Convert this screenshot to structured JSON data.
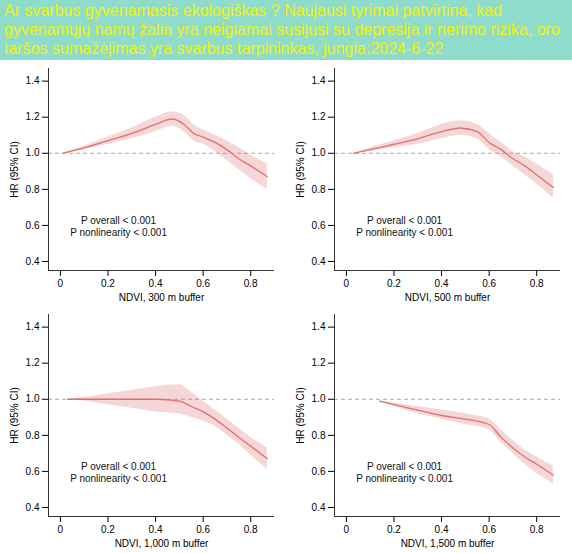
{
  "title": "Ar svarbus gyvenamasis ekologiškas ? Naujausi tyrimai patvirtina, kad gyvenamųjų namų žalia yra neigiamai susijusi su depresija ir nerimo rizika, oro taršos sumažėjimas yra svarbus tarpininkas, jungia:2024-6-22",
  "chart_data": [
    {
      "type": "line",
      "xlabel": "NDVI, 300 m buffer",
      "ylabel": "HR (95% CI)",
      "annotations": [
        "P overall < 0.001",
        "P nonlinearity < 0.001"
      ],
      "x": [
        0.01,
        0.1,
        0.2,
        0.3,
        0.4,
        0.47,
        0.52,
        0.56,
        0.6,
        0.65,
        0.7,
        0.75,
        0.8,
        0.87
      ],
      "values": [
        1.0,
        1.03,
        1.07,
        1.11,
        1.16,
        1.19,
        1.16,
        1.11,
        1.09,
        1.06,
        1.02,
        0.97,
        0.93,
        0.87
      ],
      "lower": [
        1.0,
        1.02,
        1.05,
        1.08,
        1.12,
        1.15,
        1.12,
        1.07,
        1.05,
        1.01,
        0.96,
        0.91,
        0.86,
        0.8
      ],
      "upper": [
        1.0,
        1.04,
        1.09,
        1.14,
        1.2,
        1.23,
        1.21,
        1.16,
        1.13,
        1.1,
        1.07,
        1.03,
        0.99,
        0.94
      ],
      "color": "#e07070",
      "reference_y": 1,
      "xlim": [
        -0.05,
        0.9
      ],
      "xticks": [
        0,
        0.2,
        0.4,
        0.6,
        0.8
      ],
      "ylim": [
        0.35,
        1.47
      ],
      "yticks": [
        0.4,
        0.6,
        0.8,
        {
          "value": 1,
          "label": "1.0"
        },
        1.2,
        1.4
      ]
    },
    {
      "type": "line",
      "xlabel": "NDVI, 500 m buffer",
      "ylabel": "HR (95% CI)",
      "annotations": [
        "P overall < 0.001",
        "P nonlinearity < 0.001"
      ],
      "x": [
        0.03,
        0.1,
        0.2,
        0.3,
        0.4,
        0.48,
        0.55,
        0.6,
        0.65,
        0.7,
        0.75,
        0.8,
        0.87
      ],
      "values": [
        1.0,
        1.02,
        1.05,
        1.08,
        1.12,
        1.14,
        1.12,
        1.06,
        1.02,
        0.97,
        0.93,
        0.88,
        0.81
      ],
      "lower": [
        1.0,
        1.01,
        1.03,
        1.05,
        1.08,
        1.1,
        1.08,
        1.02,
        0.98,
        0.93,
        0.88,
        0.83,
        0.75
      ],
      "upper": [
        1.0,
        1.03,
        1.07,
        1.11,
        1.16,
        1.18,
        1.16,
        1.11,
        1.06,
        1.01,
        0.98,
        0.94,
        0.88
      ],
      "color": "#e07070",
      "reference_y": 1,
      "xlim": [
        -0.05,
        0.9
      ],
      "xticks": [
        0,
        0.2,
        0.4,
        0.6,
        0.8
      ],
      "ylim": [
        0.35,
        1.47
      ],
      "yticks": [
        0.4,
        0.6,
        0.8,
        {
          "value": 1,
          "label": "1.0"
        },
        1.2,
        1.4
      ]
    },
    {
      "type": "line",
      "xlabel": "NDVI, 1,000 m buffer",
      "ylabel": "HR (95% CI)",
      "annotations": [
        "P overall < 0.001",
        "P nonlinearity < 0.001"
      ],
      "x": [
        0.03,
        0.1,
        0.2,
        0.3,
        0.4,
        0.5,
        0.55,
        0.6,
        0.65,
        0.7,
        0.75,
        0.8,
        0.87
      ],
      "values": [
        1.0,
        1.0,
        1.0,
        1.0,
        1.0,
        0.99,
        0.96,
        0.93,
        0.89,
        0.84,
        0.79,
        0.74,
        0.67
      ],
      "lower": [
        1.0,
        0.99,
        0.97,
        0.95,
        0.93,
        0.92,
        0.9,
        0.88,
        0.85,
        0.8,
        0.75,
        0.69,
        0.61
      ],
      "upper": [
        1.0,
        1.01,
        1.03,
        1.05,
        1.07,
        1.08,
        1.04,
        0.99,
        0.94,
        0.89,
        0.84,
        0.79,
        0.73
      ],
      "color": "#e07070",
      "reference_y": 1,
      "xlim": [
        -0.05,
        0.9
      ],
      "xticks": [
        0,
        0.2,
        0.4,
        0.6,
        0.8
      ],
      "ylim": [
        0.35,
        1.47
      ],
      "yticks": [
        0.4,
        0.6,
        0.8,
        {
          "value": 1,
          "label": "1.0"
        },
        1.2,
        1.4
      ]
    },
    {
      "type": "line",
      "xlabel": "NDVI, 1,500 m buffer",
      "ylabel": "HR (95% CI)",
      "annotations": [
        "P overall < 0.001",
        "P nonlinearity < 0.001"
      ],
      "x": [
        0.14,
        0.2,
        0.3,
        0.4,
        0.5,
        0.6,
        0.65,
        0.7,
        0.75,
        0.8,
        0.87
      ],
      "values": [
        0.99,
        0.97,
        0.94,
        0.91,
        0.89,
        0.86,
        0.79,
        0.73,
        0.68,
        0.64,
        0.58
      ],
      "lower": [
        0.99,
        0.96,
        0.92,
        0.89,
        0.86,
        0.83,
        0.76,
        0.7,
        0.64,
        0.59,
        0.53
      ],
      "upper": [
        0.99,
        0.98,
        0.96,
        0.94,
        0.92,
        0.89,
        0.83,
        0.77,
        0.72,
        0.68,
        0.63
      ],
      "color": "#e07070",
      "reference_y": 1,
      "xlim": [
        -0.05,
        0.9
      ],
      "xticks": [
        0,
        0.2,
        0.4,
        0.6,
        0.8
      ],
      "ylim": [
        0.35,
        1.47
      ],
      "yticks": [
        0.4,
        0.6,
        0.8,
        {
          "value": 1,
          "label": "1.0"
        },
        1.2,
        1.4
      ]
    }
  ]
}
